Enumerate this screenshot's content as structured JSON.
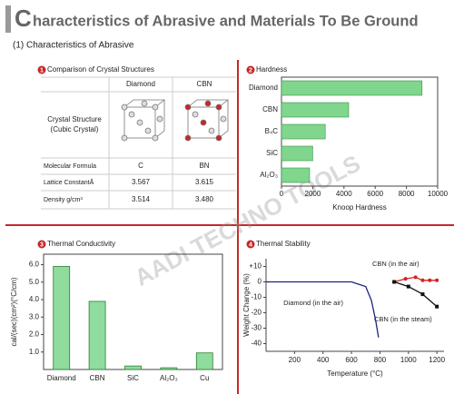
{
  "header": {
    "title_initial": "C",
    "title_rest": "haracteristics of Abrasive and Materials To Be Ground",
    "subtitle": "(1)  Characteristics of Abrasive"
  },
  "watermark": "AADI TECHNO TOOLS",
  "crystal_table": {
    "marker": "1",
    "title": "Comparison of Crystal Structures",
    "columns": [
      "Diamond",
      "CBN"
    ],
    "crystal_row_label": [
      "Crystal Structure",
      "(Cubic Crystal)"
    ],
    "rows": [
      [
        "Molecular Formula",
        "C",
        "BN"
      ],
      [
        "Lattice ConstantÅ",
        "3.567",
        "3.615"
      ],
      [
        "Density g/cm³",
        "3.514",
        "3.480"
      ]
    ]
  },
  "chart_data": [
    {
      "type": "hbar",
      "marker": "2",
      "title": "Hardness",
      "categories": [
        "Diamond",
        "CBN",
        "B₄C",
        "SiC",
        "Al₂O₃"
      ],
      "values": [
        9000,
        4300,
        2800,
        2000,
        1800
      ],
      "color": "#7fd68c",
      "xlim": [
        0,
        10000
      ],
      "xticks": [
        0,
        2000,
        4000,
        6000,
        8000,
        10000
      ],
      "xlabel": "Knoop Hardness"
    },
    {
      "type": "bar",
      "marker": "3",
      "title": "Thermal Conductivity",
      "categories": [
        "Diamond",
        "CBN",
        "SiC",
        "Al₂O₃",
        "Cu"
      ],
      "values": [
        5.9,
        3.9,
        0.2,
        0.1,
        0.95
      ],
      "color": "#8fdc9e",
      "ylim": [
        0,
        6.6
      ],
      "yticks": [
        {
          "value": 1,
          "label": "1.0"
        },
        {
          "value": 2,
          "label": "2.0"
        },
        {
          "value": 3,
          "label": "3.0"
        },
        {
          "value": 4,
          "label": "4.0"
        },
        {
          "value": 5,
          "label": "5.0"
        },
        {
          "value": 6,
          "label": "6.0"
        }
      ],
      "ylabel": "cal/(sec)(cm²)(°C/cm)"
    },
    {
      "type": "line",
      "marker": "4",
      "title": "Thermal Stability",
      "xlim": [
        0,
        1250
      ],
      "xticks": [
        200,
        400,
        600,
        800,
        1000,
        1200
      ],
      "ylim": [
        -45,
        15
      ],
      "yticks": [
        {
          "value": 10,
          "label": "+10"
        },
        0,
        -10,
        -20,
        -30,
        -40
      ],
      "xlabel": "Temperature (°C)",
      "ylabel": "Weight Change (%)",
      "series": [
        {
          "name": "CBN (in the air)",
          "color": "#d42020",
          "point": "circle",
          "x": [
            900,
            980,
            1050,
            1100,
            1150,
            1200
          ],
          "values": [
            0,
            2,
            3,
            1,
            1,
            1
          ]
        },
        {
          "name": "CBN (in the steam)",
          "color": "#111111",
          "point": "square",
          "x": [
            900,
            1000,
            1100,
            1200
          ],
          "values": [
            0,
            -3,
            -8,
            -16
          ]
        },
        {
          "name": "Diamond (in the air)",
          "color": "#1a237e",
          "point": "none",
          "x": [
            0,
            600,
            700,
            740,
            770,
            790
          ],
          "values": [
            0,
            0,
            -3,
            -12,
            -25,
            -36
          ]
        }
      ]
    }
  ]
}
